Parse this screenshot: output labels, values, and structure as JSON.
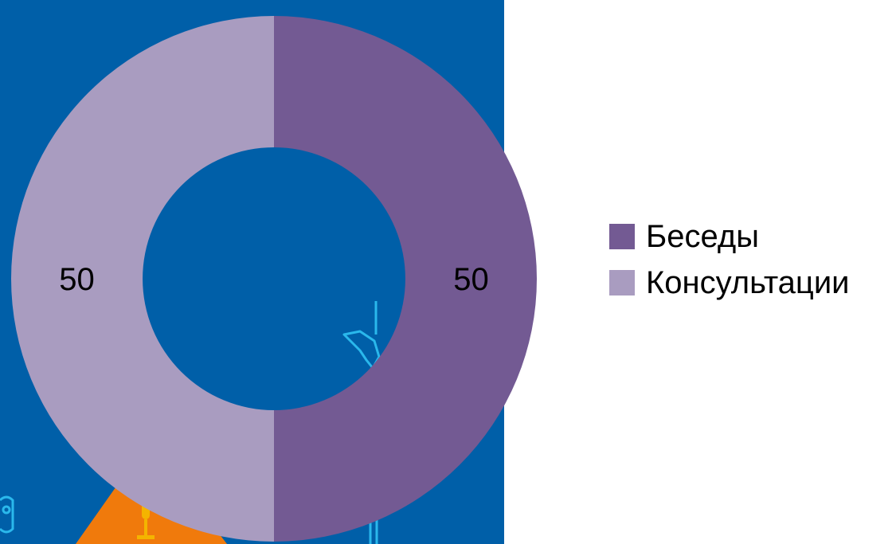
{
  "chart_data": {
    "type": "pie",
    "style": "donut",
    "categories": [
      "Беседы",
      "Консультации"
    ],
    "values": [
      50,
      50
    ],
    "data_labels": [
      "50",
      "50"
    ],
    "colors": [
      "#735a93",
      "#a99cc0"
    ],
    "legend_placement": "right",
    "title": "",
    "background_color": "#005fa8"
  },
  "decor": {
    "background_icons": [
      "owl-icon",
      "microphone-icon",
      "hand-pointer-icon"
    ],
    "accent_colors": [
      "#f07a0c",
      "#2ab8ec"
    ]
  }
}
